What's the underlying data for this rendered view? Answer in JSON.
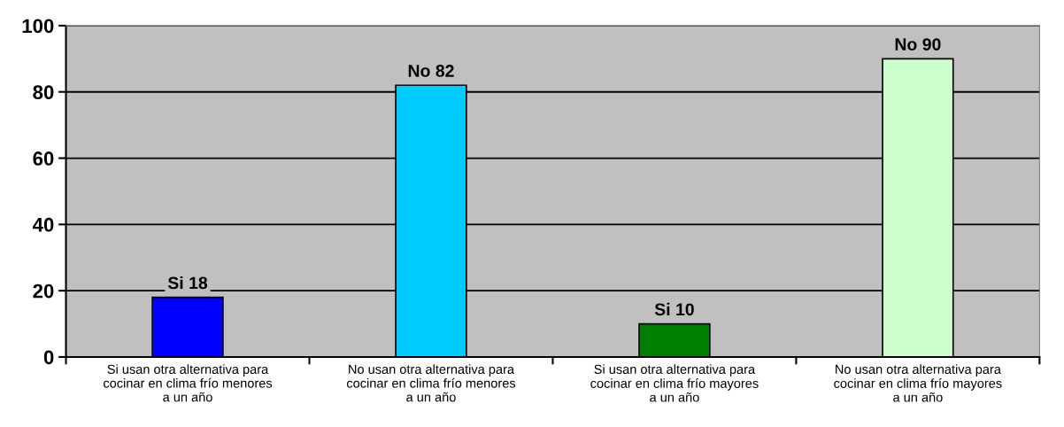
{
  "chart_data": {
    "type": "bar",
    "categories": [
      "Si usan otra alternativa para\ncocinar en clima frío menores\na un año",
      "No usan otra alternativa para\ncocinar en clima frío menores\na un año",
      "Si usan otra alternativa para\ncocinar en clima frío mayores\na un año",
      "No usan otra alternativa para\ncocinar en clima frío mayores\na un año"
    ],
    "values": [
      18,
      82,
      10,
      90
    ],
    "colors": [
      "#0000ff",
      "#00ccff",
      "#008000",
      "#ccffcc"
    ],
    "value_labels": [
      "Si 18",
      "No 82",
      "Si 10",
      "No 90"
    ],
    "ylim": [
      0,
      100
    ],
    "yticks": [
      0,
      20,
      40,
      60,
      80,
      100
    ],
    "grid": "y",
    "legend": false
  }
}
